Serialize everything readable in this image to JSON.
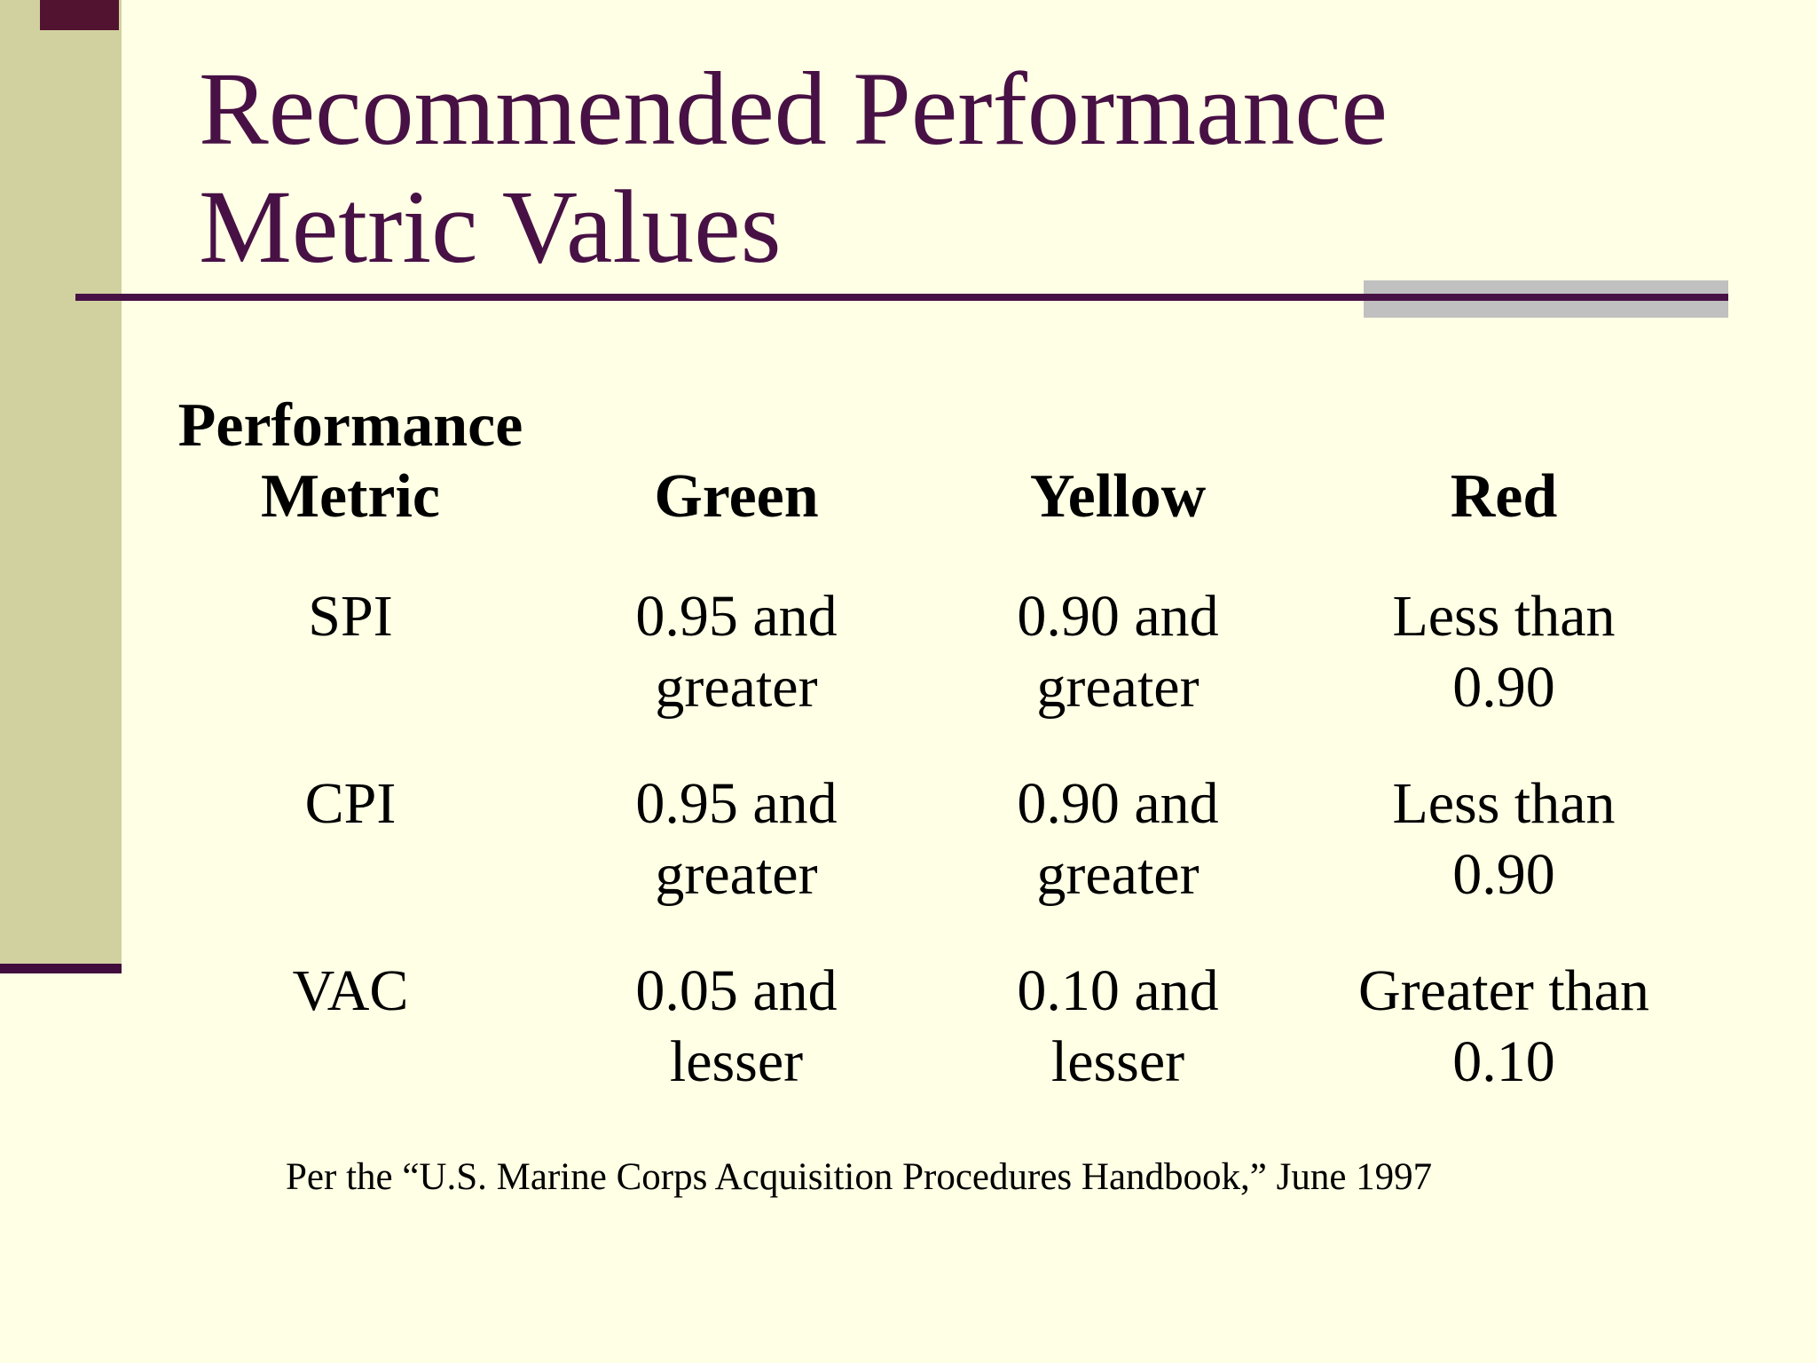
{
  "colors": {
    "bg": "#FFFFE5",
    "band": "#D1D1A0",
    "accent": "#481145",
    "bar": "#400D3C",
    "box": "#521330",
    "gray": "#C0C0C0",
    "text": "#000000"
  },
  "slide": {
    "title_lines": [
      "Recommended Performance",
      "Metric Values"
    ],
    "footer": "Per the “U.S. Marine Corps Acquisition Procedures Handbook,” June 1997"
  },
  "table": {
    "header": {
      "col1_line1": "Performance",
      "col1_line2": "Metric",
      "col2": "Green",
      "col3": "Yellow",
      "col4": "Red"
    },
    "rows": [
      {
        "metric": "SPI",
        "green": [
          "0.95 and",
          "greater"
        ],
        "yellow": [
          "0.90 and",
          "greater"
        ],
        "red": [
          "Less than",
          "0.90"
        ]
      },
      {
        "metric": "CPI",
        "green": [
          "0.95 and",
          "greater"
        ],
        "yellow": [
          "0.90 and",
          "greater"
        ],
        "red": [
          "Less than",
          "0.90"
        ]
      },
      {
        "metric": "VAC",
        "green": [
          "0.05 and",
          "lesser"
        ],
        "yellow": [
          "0.10 and",
          "lesser"
        ],
        "red": [
          "Greater than",
          "0.10"
        ]
      }
    ]
  }
}
